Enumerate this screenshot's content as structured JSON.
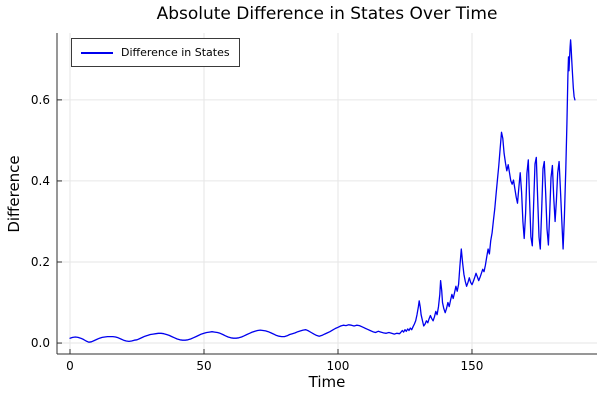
{
  "chart_data": {
    "type": "line",
    "title": "Absolute Difference in States Over Time",
    "xlabel": "Time",
    "ylabel": "Difference",
    "legend_position": "top-left",
    "grid": true,
    "xlim": [
      -4.85,
      196.65
    ],
    "ylim": [
      -0.027,
      0.765
    ],
    "xticks": [
      {
        "v": 0,
        "label": "0"
      },
      {
        "v": 50,
        "label": "50"
      },
      {
        "v": 100,
        "label": "100"
      },
      {
        "v": 150,
        "label": "150"
      }
    ],
    "yticks": [
      {
        "v": 0.0,
        "label": "0.0"
      },
      {
        "v": 0.2,
        "label": "0.2"
      },
      {
        "v": 0.4,
        "label": "0.4"
      },
      {
        "v": 0.6,
        "label": "0.6"
      }
    ],
    "colors": {
      "line": "#0000ee",
      "grid": "#e6e6e6",
      "axis": "#2f2f2f",
      "text": "#000000"
    },
    "series": [
      {
        "name": "Difference in States",
        "color": "#0000ee",
        "points": [
          [
            0,
            0.012
          ],
          [
            1,
            0.014
          ],
          [
            2,
            0.015
          ],
          [
            3,
            0.014
          ],
          [
            4,
            0.012
          ],
          [
            5,
            0.009
          ],
          [
            6,
            0.005
          ],
          [
            7,
            0.002
          ],
          [
            8,
            0.003
          ],
          [
            9,
            0.006
          ],
          [
            10,
            0.009
          ],
          [
            11,
            0.012
          ],
          [
            12,
            0.014
          ],
          [
            13,
            0.015
          ],
          [
            14,
            0.016
          ],
          [
            15,
            0.016
          ],
          [
            16,
            0.016
          ],
          [
            17,
            0.015
          ],
          [
            18,
            0.013
          ],
          [
            19,
            0.01
          ],
          [
            20,
            0.007
          ],
          [
            21,
            0.005
          ],
          [
            22,
            0.004
          ],
          [
            23,
            0.005
          ],
          [
            24,
            0.007
          ],
          [
            25,
            0.008
          ],
          [
            26,
            0.011
          ],
          [
            27,
            0.014
          ],
          [
            28,
            0.017
          ],
          [
            29,
            0.019
          ],
          [
            30,
            0.021
          ],
          [
            31,
            0.022
          ],
          [
            32,
            0.023
          ],
          [
            33,
            0.024
          ],
          [
            34,
            0.024
          ],
          [
            35,
            0.023
          ],
          [
            36,
            0.021
          ],
          [
            37,
            0.019
          ],
          [
            38,
            0.016
          ],
          [
            39,
            0.013
          ],
          [
            40,
            0.01
          ],
          [
            41,
            0.008
          ],
          [
            42,
            0.007
          ],
          [
            43,
            0.007
          ],
          [
            44,
            0.008
          ],
          [
            45,
            0.01
          ],
          [
            46,
            0.013
          ],
          [
            47,
            0.016
          ],
          [
            48,
            0.019
          ],
          [
            49,
            0.022
          ],
          [
            50,
            0.024
          ],
          [
            51,
            0.026
          ],
          [
            52,
            0.027
          ],
          [
            53,
            0.028
          ],
          [
            54,
            0.027
          ],
          [
            55,
            0.026
          ],
          [
            56,
            0.024
          ],
          [
            57,
            0.021
          ],
          [
            58,
            0.018
          ],
          [
            59,
            0.015
          ],
          [
            60,
            0.013
          ],
          [
            61,
            0.012
          ],
          [
            62,
            0.012
          ],
          [
            63,
            0.013
          ],
          [
            64,
            0.015
          ],
          [
            65,
            0.018
          ],
          [
            66,
            0.021
          ],
          [
            67,
            0.024
          ],
          [
            68,
            0.027
          ],
          [
            69,
            0.029
          ],
          [
            70,
            0.031
          ],
          [
            71,
            0.032
          ],
          [
            72,
            0.031
          ],
          [
            73,
            0.03
          ],
          [
            74,
            0.028
          ],
          [
            75,
            0.025
          ],
          [
            76,
            0.022
          ],
          [
            77,
            0.019
          ],
          [
            78,
            0.017
          ],
          [
            79,
            0.016
          ],
          [
            80,
            0.016
          ],
          [
            81,
            0.018
          ],
          [
            82,
            0.021
          ],
          [
            83,
            0.023
          ],
          [
            84,
            0.025
          ],
          [
            85,
            0.028
          ],
          [
            86,
            0.03
          ],
          [
            87,
            0.032
          ],
          [
            88,
            0.033
          ],
          [
            89,
            0.03
          ],
          [
            90,
            0.026
          ],
          [
            91,
            0.022
          ],
          [
            92,
            0.019
          ],
          [
            93,
            0.017
          ],
          [
            94,
            0.019
          ],
          [
            95,
            0.022
          ],
          [
            96,
            0.025
          ],
          [
            97,
            0.028
          ],
          [
            98,
            0.032
          ],
          [
            99,
            0.036
          ],
          [
            100,
            0.039
          ],
          [
            101,
            0.042
          ],
          [
            102,
            0.044
          ],
          [
            103,
            0.043
          ],
          [
            104,
            0.045
          ],
          [
            105,
            0.044
          ],
          [
            106,
            0.042
          ],
          [
            107,
            0.044
          ],
          [
            108,
            0.043
          ],
          [
            109,
            0.04
          ],
          [
            110,
            0.037
          ],
          [
            111,
            0.034
          ],
          [
            112,
            0.031
          ],
          [
            113,
            0.028
          ],
          [
            114,
            0.026
          ],
          [
            115,
            0.029
          ],
          [
            116,
            0.027
          ],
          [
            117,
            0.025
          ],
          [
            118,
            0.024
          ],
          [
            119,
            0.026
          ],
          [
            120,
            0.024
          ],
          [
            121,
            0.022
          ],
          [
            122,
            0.024
          ],
          [
            123,
            0.023
          ],
          [
            123.5,
            0.027
          ],
          [
            124,
            0.031
          ],
          [
            124.5,
            0.027
          ],
          [
            125,
            0.033
          ],
          [
            125.5,
            0.029
          ],
          [
            126,
            0.035
          ],
          [
            126.5,
            0.031
          ],
          [
            127,
            0.037
          ],
          [
            127.5,
            0.033
          ],
          [
            128,
            0.04
          ],
          [
            128.5,
            0.047
          ],
          [
            129,
            0.055
          ],
          [
            129.5,
            0.07
          ],
          [
            130,
            0.09
          ],
          [
            130.3,
            0.104
          ],
          [
            130.7,
            0.088
          ],
          [
            131,
            0.07
          ],
          [
            131.5,
            0.056
          ],
          [
            132,
            0.042
          ],
          [
            132.5,
            0.047
          ],
          [
            133,
            0.055
          ],
          [
            133.5,
            0.05
          ],
          [
            134,
            0.06
          ],
          [
            134.5,
            0.068
          ],
          [
            135,
            0.06
          ],
          [
            135.5,
            0.055
          ],
          [
            136,
            0.065
          ],
          [
            136.5,
            0.078
          ],
          [
            137,
            0.07
          ],
          [
            137.5,
            0.09
          ],
          [
            138,
            0.12
          ],
          [
            138.3,
            0.154
          ],
          [
            138.7,
            0.13
          ],
          [
            139,
            0.1
          ],
          [
            139.5,
            0.085
          ],
          [
            140,
            0.075
          ],
          [
            140.5,
            0.085
          ],
          [
            141,
            0.1
          ],
          [
            141.5,
            0.09
          ],
          [
            142,
            0.105
          ],
          [
            142.5,
            0.12
          ],
          [
            143,
            0.11
          ],
          [
            143.5,
            0.125
          ],
          [
            144,
            0.14
          ],
          [
            144.5,
            0.128
          ],
          [
            145,
            0.145
          ],
          [
            145.5,
            0.19
          ],
          [
            146,
            0.232
          ],
          [
            146.5,
            0.198
          ],
          [
            147,
            0.17
          ],
          [
            147.5,
            0.152
          ],
          [
            148,
            0.14
          ],
          [
            148.5,
            0.15
          ],
          [
            149,
            0.161
          ],
          [
            149.5,
            0.15
          ],
          [
            150,
            0.144
          ],
          [
            150.5,
            0.152
          ],
          [
            151,
            0.162
          ],
          [
            151.5,
            0.172
          ],
          [
            152,
            0.164
          ],
          [
            152.5,
            0.154
          ],
          [
            153,
            0.162
          ],
          [
            153.5,
            0.172
          ],
          [
            154,
            0.182
          ],
          [
            154.5,
            0.176
          ],
          [
            155,
            0.192
          ],
          [
            155.5,
            0.212
          ],
          [
            156,
            0.232
          ],
          [
            156.5,
            0.22
          ],
          [
            157,
            0.252
          ],
          [
            157.5,
            0.272
          ],
          [
            158,
            0.302
          ],
          [
            158.5,
            0.332
          ],
          [
            159,
            0.368
          ],
          [
            159.5,
            0.402
          ],
          [
            160,
            0.438
          ],
          [
            160.5,
            0.478
          ],
          [
            161,
            0.52
          ],
          [
            161.5,
            0.505
          ],
          [
            162,
            0.468
          ],
          [
            162.5,
            0.444
          ],
          [
            163,
            0.425
          ],
          [
            163.5,
            0.44
          ],
          [
            164,
            0.42
          ],
          [
            164.5,
            0.4
          ],
          [
            165,
            0.392
          ],
          [
            165.5,
            0.402
          ],
          [
            166,
            0.38
          ],
          [
            166.5,
            0.36
          ],
          [
            167,
            0.345
          ],
          [
            167.5,
            0.385
          ],
          [
            168,
            0.42
          ],
          [
            168.5,
            0.372
          ],
          [
            169,
            0.3
          ],
          [
            169.5,
            0.258
          ],
          [
            170,
            0.32
          ],
          [
            170.5,
            0.418
          ],
          [
            171,
            0.452
          ],
          [
            171.5,
            0.352
          ],
          [
            172,
            0.262
          ],
          [
            172.5,
            0.24
          ],
          [
            173,
            0.34
          ],
          [
            173.5,
            0.442
          ],
          [
            174,
            0.458
          ],
          [
            174.5,
            0.362
          ],
          [
            175,
            0.262
          ],
          [
            175.5,
            0.232
          ],
          [
            176,
            0.33
          ],
          [
            176.5,
            0.43
          ],
          [
            177,
            0.448
          ],
          [
            177.5,
            0.368
          ],
          [
            178,
            0.282
          ],
          [
            178.5,
            0.242
          ],
          [
            179,
            0.32
          ],
          [
            179.5,
            0.408
          ],
          [
            180,
            0.438
          ],
          [
            180.5,
            0.36
          ],
          [
            181,
            0.3
          ],
          [
            181.5,
            0.352
          ],
          [
            182,
            0.42
          ],
          [
            182.5,
            0.448
          ],
          [
            183,
            0.38
          ],
          [
            183.5,
            0.302
          ],
          [
            184,
            0.232
          ],
          [
            184.5,
            0.312
          ],
          [
            184.8,
            0.38
          ],
          [
            185,
            0.43
          ],
          [
            185.2,
            0.48
          ],
          [
            185.4,
            0.54
          ],
          [
            185.6,
            0.6
          ],
          [
            185.8,
            0.66
          ],
          [
            186,
            0.706
          ],
          [
            186.2,
            0.672
          ],
          [
            186.4,
            0.7
          ],
          [
            186.6,
            0.73
          ],
          [
            186.8,
            0.748
          ],
          [
            187,
            0.73
          ],
          [
            187.2,
            0.7
          ],
          [
            187.5,
            0.664
          ],
          [
            187.8,
            0.63
          ],
          [
            188.1,
            0.608
          ],
          [
            188.4,
            0.6
          ]
        ]
      }
    ]
  }
}
